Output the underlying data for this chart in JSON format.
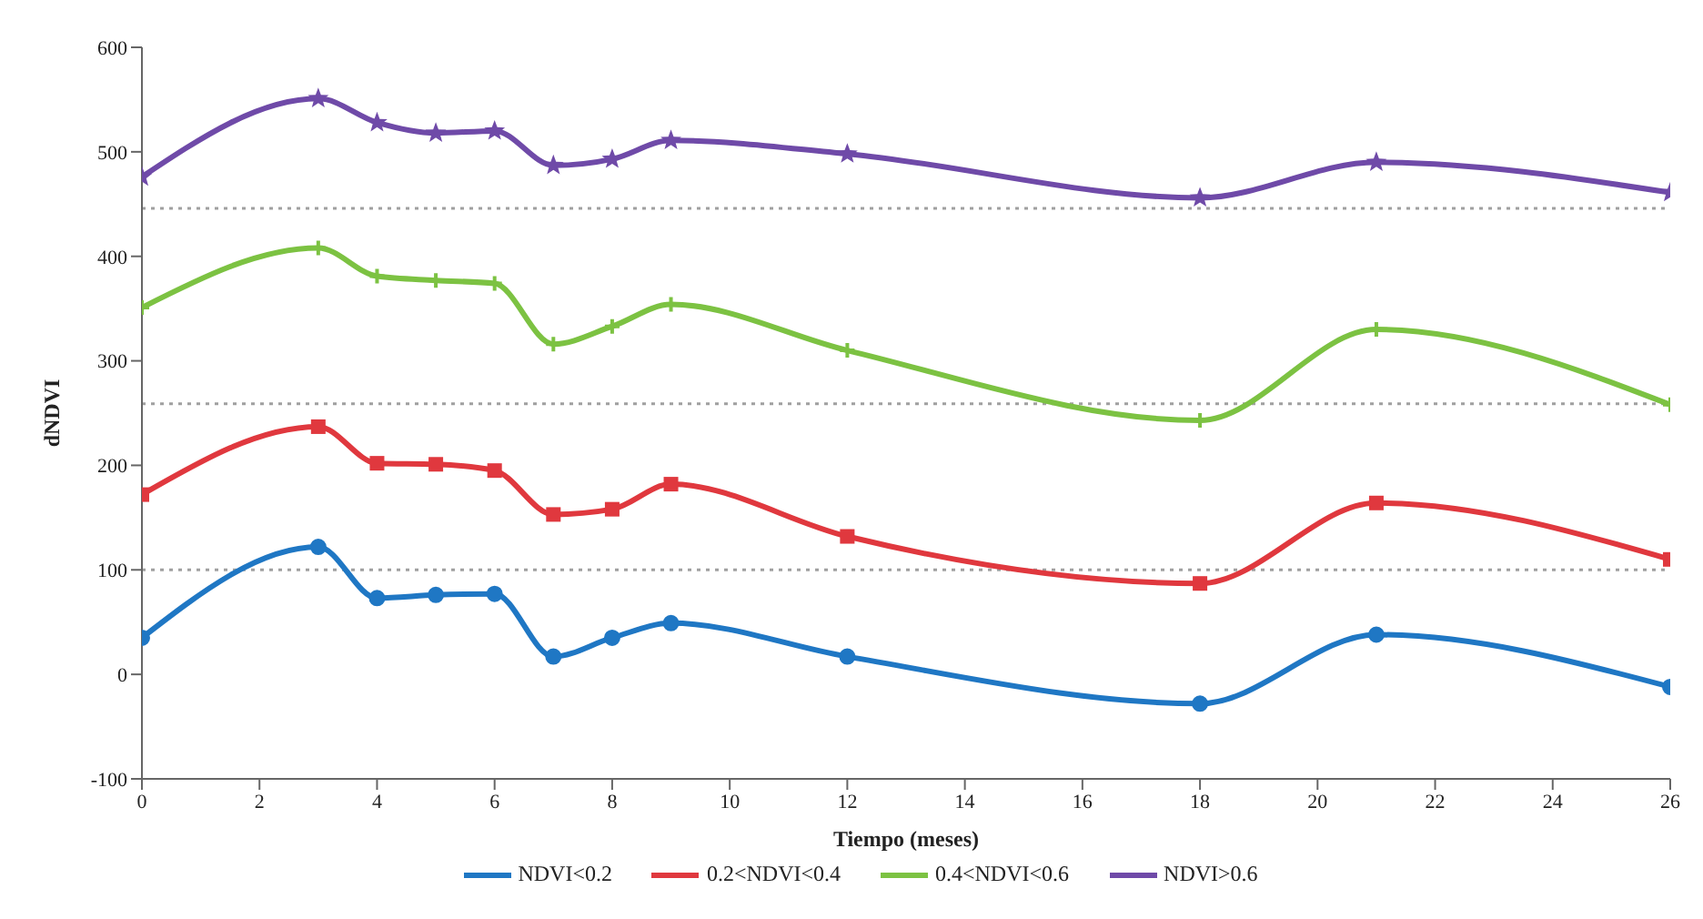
{
  "chart_data": {
    "type": "line",
    "xlabel": "Tiempo (meses)",
    "ylabel": "dNDVI",
    "x": [
      0,
      3,
      4,
      5,
      6,
      7,
      8,
      9,
      12,
      18,
      21,
      26
    ],
    "series": [
      {
        "name": "NDVI<0.2",
        "color": "#1f77c4",
        "marker": "circle",
        "values": [
          35,
          122,
          73,
          76,
          77,
          17,
          35,
          49,
          17,
          -28,
          38,
          -12
        ]
      },
      {
        "name": "0.2<NDVI<0.4",
        "color": "#e0383e",
        "marker": "square",
        "values": [
          172,
          237,
          202,
          201,
          195,
          153,
          158,
          182,
          132,
          87,
          164,
          110
        ]
      },
      {
        "name": "0.4<NDVI<0.6",
        "color": "#7cc242",
        "marker": "cross",
        "values": [
          351,
          408,
          381,
          377,
          374,
          316,
          333,
          354,
          310,
          243,
          330,
          258
        ]
      },
      {
        "name": "NDVI>0.6",
        "color": "#6f4aa8",
        "marker": "star",
        "values": [
          476,
          551,
          528,
          518,
          520,
          487,
          493,
          511,
          498,
          456,
          490,
          461
        ]
      }
    ],
    "xlim": [
      0,
      26
    ],
    "xticks": [
      0,
      2,
      4,
      6,
      8,
      10,
      12,
      14,
      16,
      18,
      20,
      22,
      24,
      26
    ],
    "ylim": [
      -100,
      600
    ],
    "yticks": [
      -100,
      0,
      100,
      200,
      300,
      400,
      500,
      600
    ],
    "ref_lines": [
      {
        "axis": "y",
        "value": 446,
        "color": "#a0a0a0",
        "line_style": "dotted"
      },
      {
        "axis": "y",
        "value": 259,
        "color": "#a0a0a0",
        "line_style": "dotted"
      },
      {
        "axis": "y",
        "value": 100,
        "color": "#a0a0a0",
        "line_style": "dotted"
      }
    ],
    "grid": false,
    "legend": "bottom",
    "line_style": "solid"
  }
}
